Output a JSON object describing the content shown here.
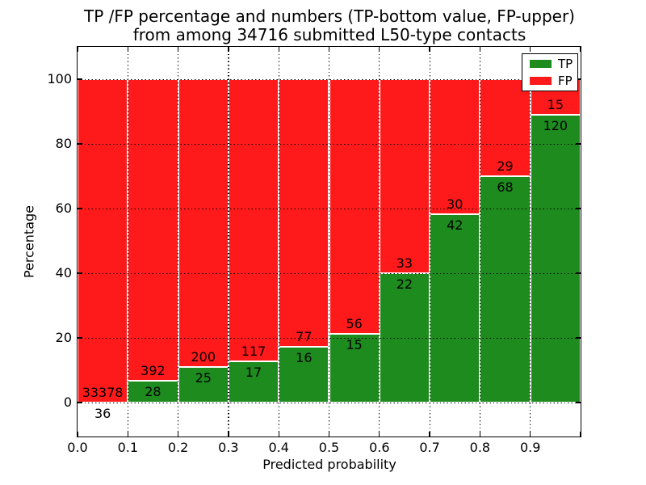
{
  "title": {
    "line1": "TP /FP percentage and numbers (TP-bottom value, FP-upper)",
    "line2": "from among 34716 submitted L50-type contacts"
  },
  "axes": {
    "xlabel": "Predicted probability",
    "ylabel": "Percentage",
    "xticklabels": [
      "0.0",
      "0.1",
      "0.2",
      "0.3",
      "0.4",
      "0.5",
      "0.6",
      "0.7",
      "0.8",
      "0.9"
    ],
    "yticklabels": [
      "0",
      "20",
      "40",
      "60",
      "80",
      "100"
    ]
  },
  "legend": {
    "position": "upper right",
    "entries": [
      {
        "label": "TP",
        "color": "#1e8b1e"
      },
      {
        "label": "FP",
        "color": "#fe1a1a"
      }
    ]
  },
  "chart_data": {
    "type": "bar",
    "variant": "stacked-100-percent",
    "title": "TP /FP percentage and numbers (TP-bottom value, FP-upper) from among 34716 submitted L50-type contacts",
    "xlabel": "Predicted probability",
    "ylabel": "Percentage",
    "total_contacts": 34716,
    "bin_edges": [
      0.0,
      0.1,
      0.2,
      0.3,
      0.4,
      0.5,
      0.6,
      0.7,
      0.8,
      0.9,
      1.0
    ],
    "categories": [
      "0.0-0.1",
      "0.1-0.2",
      "0.2-0.3",
      "0.3-0.4",
      "0.4-0.5",
      "0.5-0.6",
      "0.6-0.7",
      "0.7-0.8",
      "0.8-0.9",
      "0.9-1.0"
    ],
    "series": [
      {
        "name": "TP",
        "position": "bottom",
        "color": "#1e8b1e",
        "counts": [
          36,
          28,
          25,
          17,
          16,
          15,
          22,
          42,
          68,
          120
        ]
      },
      {
        "name": "FP",
        "position": "top",
        "color": "#fe1a1a",
        "counts": [
          33378,
          392,
          200,
          117,
          77,
          56,
          33,
          30,
          29,
          15
        ]
      }
    ],
    "tp_percent_of_bin": [
      0.11,
      6.67,
      11.11,
      12.69,
      17.2,
      21.13,
      40.0,
      58.33,
      70.1,
      88.89
    ],
    "xlim": [
      0.0,
      1.0
    ],
    "ylim": [
      -10.8,
      110.0
    ],
    "xticks": [
      0.0,
      0.1,
      0.2,
      0.3,
      0.4,
      0.5,
      0.6,
      0.7,
      0.8,
      0.9,
      1.0
    ],
    "yticks": [
      0,
      20,
      40,
      60,
      80,
      100
    ],
    "grid": {
      "linestyle": "dotted",
      "color": "#000000",
      "drawn_above_bars": true
    },
    "bar_edge_color": "#ffffff"
  }
}
